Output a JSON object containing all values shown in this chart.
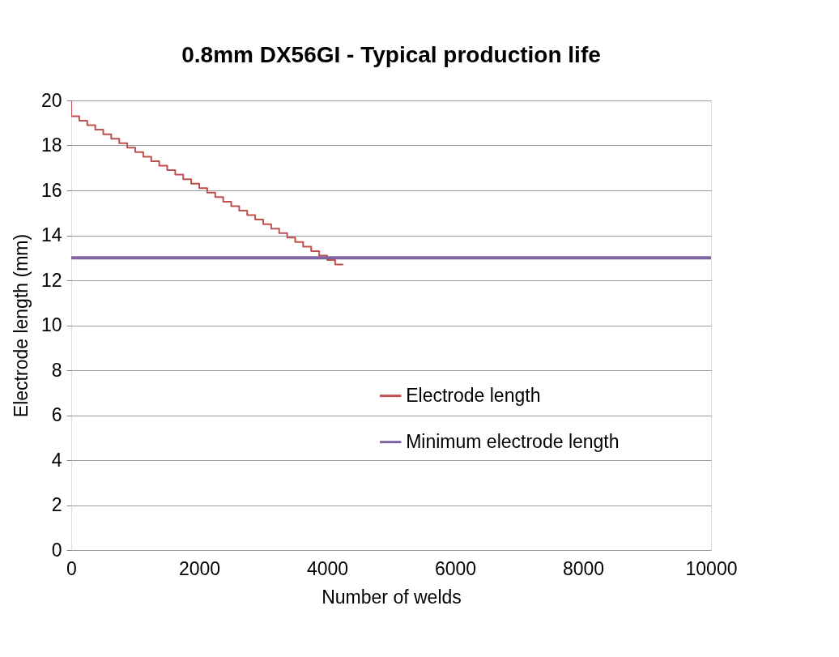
{
  "chart_data": {
    "type": "line",
    "title": "0.8mm DX56GI - Typical production life",
    "xlabel": "Number of welds",
    "ylabel": "Electrode length (mm)",
    "xlim": [
      0,
      10000
    ],
    "xticks": [
      0,
      {
        "value": 2000,
        "label": "2000"
      },
      {
        "value": 4000,
        "label": "4000"
      },
      {
        "value": 6000,
        "label": "6000"
      },
      {
        "value": 8000,
        "label": "8000"
      },
      {
        "value": 10000,
        "label": "10000"
      }
    ],
    "ylim": [
      0,
      20
    ],
    "yticks": [
      0,
      2,
      4,
      6,
      8,
      10,
      12,
      14,
      16,
      18,
      20
    ],
    "grid": "y",
    "legend": "right",
    "series": [
      {
        "name": "Electrode length",
        "type": "step",
        "color": "#c0504d",
        "x": [
          0,
          125,
          250,
          375,
          500,
          625,
          750,
          875,
          1000,
          1125,
          1250,
          1375,
          1500,
          1625,
          1750,
          1875,
          2000,
          2125,
          2250,
          2375,
          2500,
          2625,
          2750,
          2875,
          3000,
          3125,
          3250,
          3375,
          3500,
          3625,
          3750,
          3875,
          4000,
          4125,
          4250
        ],
        "values": [
          20,
          19.3,
          19.1,
          18.9,
          18.7,
          18.5,
          18.3,
          18.1,
          17.9,
          17.7,
          17.5,
          17.3,
          17.1,
          16.9,
          16.7,
          16.5,
          16.3,
          16.1,
          15.9,
          15.7,
          15.5,
          15.3,
          15.1,
          14.9,
          14.7,
          14.5,
          14.3,
          14.1,
          13.9,
          13.7,
          13.5,
          13.3,
          13.1,
          12.9,
          12.7
        ]
      },
      {
        "name": "Minimum electrode length",
        "color": "#8064a2",
        "x": [
          0,
          10000
        ],
        "values": [
          13,
          13
        ]
      }
    ]
  }
}
